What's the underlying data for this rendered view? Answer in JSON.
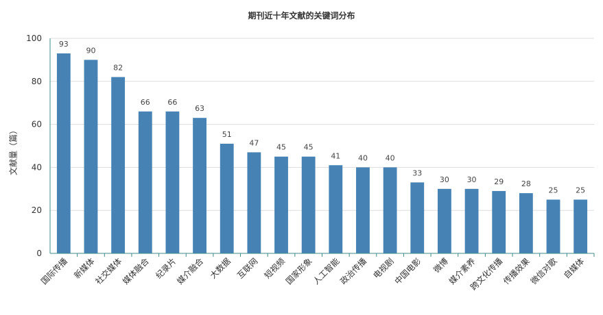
{
  "chart_data": {
    "type": "bar",
    "title": "期刊近十年文献的关键词分布",
    "ylabel": "文献量（篇）",
    "xlabel": "",
    "ylim": [
      0,
      100
    ],
    "yticks": [
      0,
      20,
      40,
      60,
      80,
      100
    ],
    "grid": true,
    "bar_color": "#4682b4",
    "categories": [
      "国际传播",
      "新媒体",
      "社交媒体",
      "媒体融合",
      "纪录片",
      "媒介融合",
      "大数据",
      "互联网",
      "短视频",
      "国家形象",
      "人工智能",
      "政治传播",
      "电视剧",
      "中国电影",
      "微博",
      "媒介素养",
      "跨文化传播",
      "传播效果",
      "微信对歌",
      "自媒体"
    ],
    "values": [
      93,
      90,
      82,
      66,
      66,
      63,
      51,
      47,
      45,
      45,
      41,
      40,
      40,
      33,
      30,
      30,
      29,
      28,
      25,
      25
    ]
  }
}
